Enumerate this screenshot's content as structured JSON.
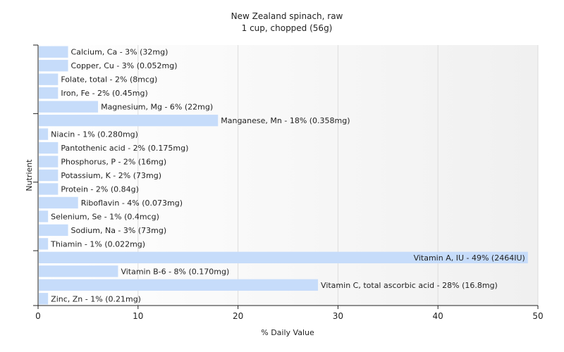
{
  "chart_data": {
    "type": "bar",
    "orientation": "horizontal",
    "title": "New Zealand spinach, raw",
    "subtitle": "1 cup, chopped (56g)",
    "xlabel": "% Daily Value",
    "ylabel": "Nutrient",
    "xlim": [
      0,
      50
    ],
    "xticks": [
      0,
      10,
      20,
      30,
      40,
      50
    ],
    "grid": true,
    "bar_color": "#c6dcfa",
    "categories": [
      "Calcium, Ca",
      "Copper, Cu",
      "Folate, total",
      "Iron, Fe",
      "Magnesium, Mg",
      "Manganese, Mn",
      "Niacin",
      "Pantothenic acid",
      "Phosphorus, P",
      "Potassium, K",
      "Protein",
      "Riboflavin",
      "Selenium, Se",
      "Sodium, Na",
      "Thiamin",
      "Vitamin A, IU",
      "Vitamin B-6",
      "Vitamin C, total ascorbic acid",
      "Zinc, Zn"
    ],
    "values": [
      3,
      3,
      2,
      2,
      6,
      18,
      1,
      2,
      2,
      2,
      2,
      4,
      1,
      3,
      1,
      49,
      8,
      28,
      1
    ],
    "labels": [
      "Calcium, Ca - 3% (32mg)",
      "Copper, Cu - 3% (0.052mg)",
      "Folate, total - 2% (8mcg)",
      "Iron, Fe - 2% (0.45mg)",
      "Magnesium, Mg - 6% (22mg)",
      "Manganese, Mn - 18% (0.358mg)",
      "Niacin - 1% (0.280mg)",
      "Pantothenic acid - 2% (0.175mg)",
      "Phosphorus, P - 2% (16mg)",
      "Potassium, K - 2% (73mg)",
      "Protein - 2% (0.84g)",
      "Riboflavin - 4% (0.073mg)",
      "Selenium, Se - 1% (0.4mcg)",
      "Sodium, Na - 3% (73mg)",
      "Thiamin - 1% (0.022mg)",
      "Vitamin A, IU - 49% (2464IU)",
      "Vitamin B-6 - 8% (0.170mg)",
      "Vitamin C, total ascorbic acid - 28% (16.8mg)",
      "Zinc, Zn - 1% (0.21mg)"
    ]
  }
}
